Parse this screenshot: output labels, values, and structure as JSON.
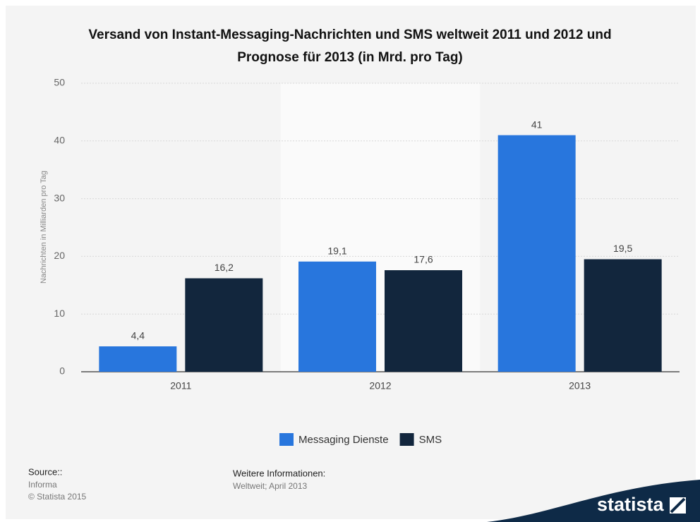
{
  "chart_data": {
    "type": "bar",
    "title": "Versand von Instant-Messaging-Nachrichten und SMS weltweit 2011 und 2012 und Prognose für 2013 (in Mrd. pro Tag)",
    "y_label": "Nachrichten in Milliarden pro Tag",
    "categories": [
      "2011",
      "2012",
      "2013"
    ],
    "series": [
      {
        "name": "Messaging Dienste",
        "color": "#2876dd",
        "values": [
          4.4,
          19.1,
          41
        ],
        "value_labels": [
          "4,4",
          "19,1",
          "41"
        ]
      },
      {
        "name": "SMS",
        "color": "#12263d",
        "values": [
          16.2,
          17.6,
          19.5
        ],
        "value_labels": [
          "16,2",
          "17,6",
          "19,5"
        ]
      }
    ],
    "ylim": [
      0,
      50
    ],
    "yticks": [
      0,
      10,
      20,
      30,
      40,
      50
    ],
    "grid": true,
    "legend": "bottom"
  },
  "footer": {
    "source_heading": "Source::",
    "source": "Informa",
    "copyright": "© Statista 2015",
    "info_heading": "Weitere Informationen:",
    "info": "Weltweit; April 2013",
    "logo": "statista"
  }
}
